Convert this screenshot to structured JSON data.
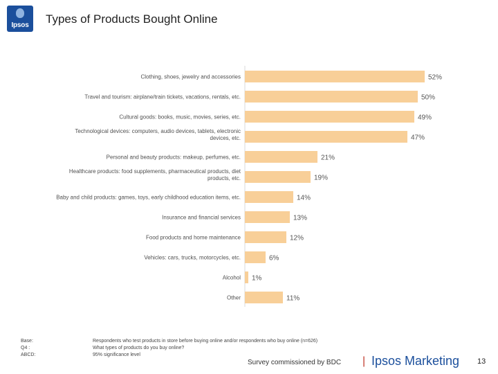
{
  "logo": {
    "text": "Ipsos"
  },
  "title": "Types of Products Bought Online",
  "chart_data": {
    "type": "bar",
    "orientation": "horizontal",
    "title": "Types of Products Bought Online",
    "categories": [
      [
        "Clothing, shoes, jewelry and accessories"
      ],
      [
        "Travel and tourism: airplane/train tickets, vacations, rentals, etc."
      ],
      [
        "Cultural goods: books, music, movies, series, etc."
      ],
      [
        "Technological devices: computers, audio devices, tablets, electronic",
        "devices, etc."
      ],
      [
        "Personal and beauty products: makeup, perfumes, etc."
      ],
      [
        "Healthcare products: food supplements, pharmaceutical products, diet",
        "products, etc."
      ],
      [
        "Baby and child products: games, toys, early childhood education items, etc."
      ],
      [
        "Insurance and financial services"
      ],
      [
        "Food products and home maintenance"
      ],
      [
        "Vehicles: cars, trucks, motorcycles, etc."
      ],
      [
        "Alcohol"
      ],
      [
        "Other"
      ]
    ],
    "values": [
      52,
      50,
      49,
      47,
      21,
      19,
      14,
      13,
      12,
      6,
      1,
      11
    ],
    "value_labels": [
      "52%",
      "50%",
      "49%",
      "47%",
      "21%",
      "19%",
      "14%",
      "13%",
      "12%",
      "6%",
      "1%",
      "11%"
    ],
    "xlim": [
      0,
      100
    ],
    "bar_color": "#f8cf98",
    "label_color": "#4f4f4f",
    "value_color": "#555555"
  },
  "footer": {
    "labels": [
      "Base:",
      "Q4 :",
      "ABCD:"
    ],
    "notes": [
      "Respondents who test products in store before buying online and/or respondents who buy online (n=626)",
      "What types of products do you buy online?",
      "95% significance level"
    ],
    "survey": "Survey commissioned by BDC",
    "separator": "|",
    "brand": "Ipsos Marketing",
    "page_number": "13"
  }
}
